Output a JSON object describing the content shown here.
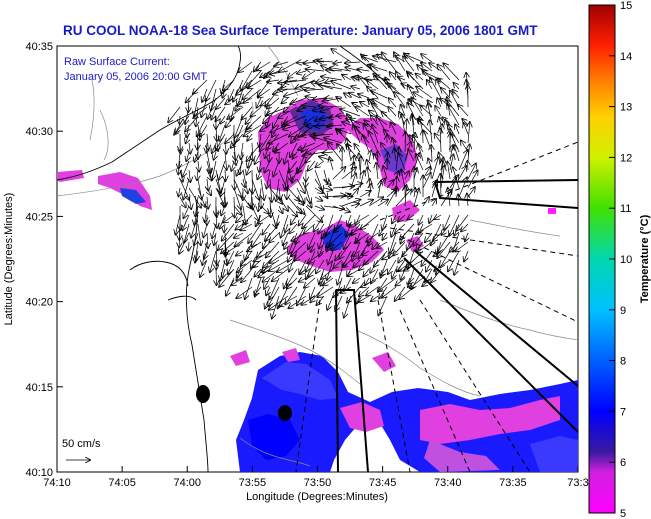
{
  "title": "RU COOL  NOAA-18  Sea Surface Temperature:  January 05, 2006 1801 GMT",
  "inset": {
    "line1": "Raw Surface Current:",
    "line2": "January 05, 2006 20:00 GMT"
  },
  "scale_label": "50 cm/s",
  "x_axis": {
    "label": "Longitude (Degrees:Minutes)",
    "ticks": [
      "74:10",
      "74:05",
      "74:00",
      "73:55",
      "73:50",
      "73:45",
      "73:40",
      "73:35",
      "73:3"
    ]
  },
  "y_axis": {
    "label": "Latitude (Degrees:Minutes)",
    "ticks": [
      "40:35",
      "40:30",
      "40:25",
      "40:20",
      "40:15",
      "40:10"
    ]
  },
  "colorbar": {
    "label": "Temperature (°C)",
    "min": 5,
    "max": 15,
    "ticks": [
      "15",
      "14",
      "13",
      "12",
      "11",
      "10",
      "9",
      "8",
      "7",
      "6",
      "5"
    ],
    "colors": [
      "#ff00ff",
      "#3a1aa0",
      "#0000ff",
      "#00a0ff",
      "#00e0e0",
      "#00d070",
      "#a0e000",
      "#ffff00",
      "#ffa000",
      "#ff2000",
      "#a00000"
    ]
  },
  "colors": {
    "title": "#1a1ac8",
    "land": "#ffffff",
    "sst_magenta": "#ff00ff",
    "sst_blue": "#0000ff",
    "sst_violet": "#7a3aff"
  }
}
